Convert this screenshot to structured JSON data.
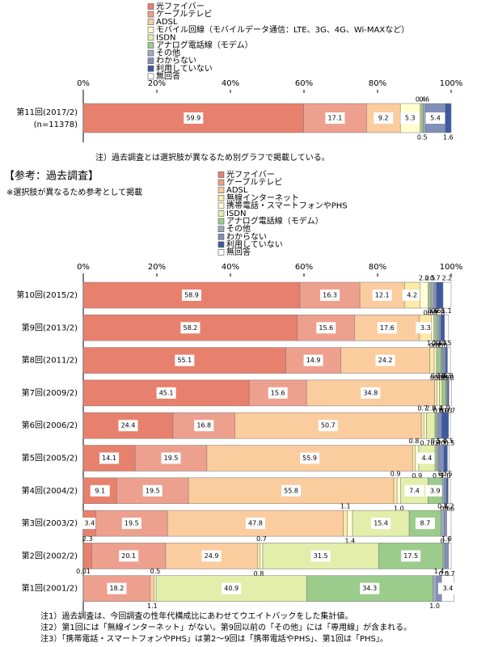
{
  "chart_data": [
    {
      "type": "bar",
      "orientation": "horizontal",
      "stacked": true,
      "categories": [
        "第11回(2017/2)"
      ],
      "category_note": "(n=11378)",
      "xlim": [
        0,
        100
      ],
      "xticks": [
        {
          "value": 0,
          "label": "0%"
        },
        {
          "value": 20,
          "label": "20%"
        },
        {
          "value": 40,
          "label": "40%"
        },
        {
          "value": 60,
          "label": "60%"
        },
        {
          "value": 80,
          "label": "80%"
        },
        {
          "value": 100,
          "label": "100%"
        }
      ],
      "series": [
        {
          "name": "光ファイバー",
          "color": "#e8806e",
          "values": [
            59.9
          ]
        },
        {
          "name": "ケーブルテレビ",
          "color": "#eea08e",
          "values": [
            17.1
          ]
        },
        {
          "name": "ADSL",
          "color": "#fbcc9e",
          "values": [
            9.2
          ]
        },
        {
          "name": "モバイル回線（モバイルデータ通信：LTE、3G、4G、Wi-MAXなど）",
          "color": "#ffffd0",
          "values": [
            5.3
          ]
        },
        {
          "name": "ISDN",
          "color": "#e2eeaa",
          "values": [
            0.4
          ]
        },
        {
          "name": "アナログ電話線（モデム）",
          "color": "#9ccc8c",
          "values": [
            0.5
          ]
        },
        {
          "name": "その他",
          "color": "#a0a8c0",
          "values": [
            0.6
          ]
        },
        {
          "name": "わからない",
          "color": "#8090b8",
          "values": [
            5.4
          ]
        },
        {
          "name": "利用していない",
          "color": "#3c5aa0",
          "values": [
            1.6
          ]
        },
        {
          "name": "無回答",
          "color": "#ffffff",
          "values": [
            null
          ]
        }
      ]
    },
    {
      "type": "bar",
      "orientation": "horizontal",
      "stacked": true,
      "categories": [
        "第10回(2015/2)",
        "第9回(2013/2)",
        "第8回(2011/2)",
        "第7回(2009/2)",
        "第6回(2006/2)",
        "第5回(2005/2)",
        "第4回(2004/2)",
        "第3回(2003/2)",
        "第2回(2002/2)",
        "第1回(2001/2)"
      ],
      "xlim": [
        0,
        100
      ],
      "xticks": [
        {
          "value": 0,
          "label": "0%"
        },
        {
          "value": 20,
          "label": "20%"
        },
        {
          "value": 40,
          "label": "40%"
        },
        {
          "value": 60,
          "label": "60%"
        },
        {
          "value": 80,
          "label": "80%"
        },
        {
          "value": 100,
          "label": "100%"
        }
      ],
      "series": [
        {
          "name": "光ファイバー",
          "color": "#e8806e",
          "values": [
            58.9,
            58.2,
            55.1,
            45.1,
            24.4,
            14.1,
            9.1,
            3.4,
            2.3,
            0.01
          ],
          "value_labels": [
            "58.9",
            "58.2",
            "55.1",
            "45.1",
            "24.4",
            "14.1",
            "9.1",
            "3.4",
            "2.3",
            "0.01"
          ]
        },
        {
          "name": "ケーブルテレビ",
          "color": "#eea08e",
          "values": [
            16.3,
            15.6,
            14.9,
            15.6,
            16.8,
            19.5,
            19.5,
            19.5,
            20.1,
            18.2
          ],
          "value_labels": [
            "16.3",
            "15.6",
            "14.9",
            "15.6",
            "16.8",
            "19.5",
            "19.5",
            "19.5",
            "20.1",
            "18.2"
          ]
        },
        {
          "name": "ADSL",
          "color": "#fbcc9e",
          "values": [
            12.1,
            17.6,
            24.2,
            34.8,
            50.7,
            55.9,
            55.8,
            47.8,
            24.9,
            1.1
          ],
          "value_labels": [
            "12.1",
            "17.6",
            "24.2",
            "34.8",
            "50.7",
            "55.9",
            "55.8",
            "47.8",
            "24.9",
            "1.1"
          ]
        },
        {
          "name": "無線インターネット",
          "color": "#fde9a8",
          "values": [
            4.2,
            3.3,
            1.2,
            0.7,
            0.7,
            0.8,
            0.9,
            1.1,
            0.8,
            null
          ],
          "value_labels": [
            "4.2",
            "3.3",
            "1.2",
            "0.7",
            "0.7",
            "0.8",
            "0.9",
            "1.1",
            "0.8",
            null
          ]
        },
        {
          "name": "携帯電話・スマートフォンやPHS",
          "color": "#ffffd8",
          "values": [
            2.2,
            0.6,
            0.5,
            0.6,
            0.7,
            0.9,
            1.0,
            1.4,
            0.7,
            0.5
          ],
          "value_labels": [
            "2.2",
            "0.6",
            "0.5",
            "0.6",
            "0.7",
            "0.9",
            "1.0",
            "1.4",
            "0.7",
            "0.5"
          ]
        },
        {
          "name": "ISDN",
          "color": "#e2eeaa",
          "values": [
            0.3,
            0.3,
            0.4,
            0.8,
            2.3,
            4.4,
            7.4,
            15.4,
            31.5,
            40.9
          ],
          "value_labels": [
            "0.3",
            "0.3",
            "0.4",
            "0.8",
            "2.3",
            "4.4",
            "7.4",
            "15.4",
            "31.5",
            "40.9"
          ]
        },
        {
          "name": "アナログ電話線（モデム）",
          "color": "#9ccc8c",
          "values": [
            0.5,
            0.6,
            0.9,
            0.9,
            0.4,
            0.5,
            3.9,
            8.7,
            17.5,
            34.3
          ],
          "value_labels": [
            "0.5",
            "0.6",
            "0.9",
            "0.9",
            "0.4",
            "0.5",
            "3.9",
            "8.7",
            "17.5",
            "34.3"
          ]
        },
        {
          "name": "その他",
          "color": "#a0a8c0",
          "values": [
            0.8,
            0.5,
            0.4,
            0.3,
            0.4,
            0.5,
            0.5,
            0.8,
            0.5,
            1.0
          ],
          "value_labels": [
            "0.8",
            "0.5",
            "0.4",
            "0.3",
            "0.4",
            "0.5",
            "0.5",
            "0.8",
            "0.5",
            "1.0"
          ]
        },
        {
          "name": "わからない",
          "color": "#8090b8",
          "values": [
            0.7,
            0.5,
            0.9,
            0.3,
            1.0,
            1.4,
            0.6,
            0.7,
            1.0,
            1.4
          ],
          "value_labels": [
            "0.7",
            "0.5",
            "0.9",
            "0.3",
            "1.0",
            "1.4",
            "0.6",
            "0.7",
            "1.0",
            "1.4"
          ]
        },
        {
          "name": "利用していない",
          "color": "#3c5aa0",
          "values": [
            1.8,
            1.0,
            0.5,
            0.3,
            1.9,
            1.0,
            0.5,
            null,
            null,
            null
          ],
          "value_labels": [
            "1.8",
            "1.0",
            "0.5",
            "0.3",
            "1.9",
            "1.0",
            "0.5",
            null,
            null,
            null
          ]
        },
        {
          "name": "無回答",
          "color": "#ffffff",
          "values": [
            2.2,
            1.1,
            0.8,
            0.7,
            0.5,
            0.5,
            0.6,
            1.2,
            0.7,
            3.4
          ],
          "value_labels": [
            "2.2",
            "1.1",
            "0.8",
            "0.7",
            "0.5",
            "0.5",
            "0.6",
            "1.2",
            "0.7",
            "3.4"
          ]
        }
      ]
    }
  ],
  "note": "注）過去調査とは選択肢が異なるため別グラフで掲載している。",
  "reference": {
    "title": "【参考：過去調査】",
    "subtitle": "※選択肢が異なるため参考として掲載"
  },
  "footnotes": [
    "注1）過去調査は、今回調査の性年代構成比にあわせてウエイトバックをした集計値。",
    "注2）第1回には「無線インターネット」がない。第9回以前の「その他」には「専用線」が含まれる。",
    "注3）「携帯電話・スマートフォンやPHS」は第2～9回は「携帯電話やPHS」、第1回は「PHS」。"
  ]
}
